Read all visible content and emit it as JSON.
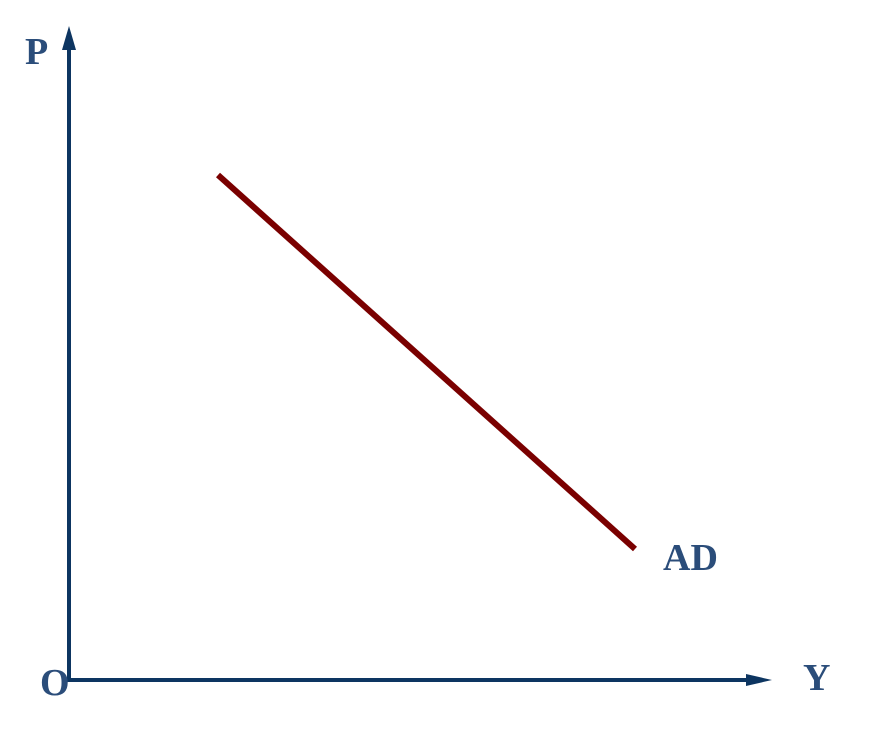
{
  "diagram": {
    "axes": {
      "y_label": "P",
      "x_label": "Y",
      "origin_label": "O"
    },
    "curves": [
      {
        "label": "AD",
        "slope": "downward"
      }
    ],
    "colors": {
      "axis": "#0d3561",
      "label": "#2b4d7a",
      "curve": "#7a0000"
    }
  }
}
